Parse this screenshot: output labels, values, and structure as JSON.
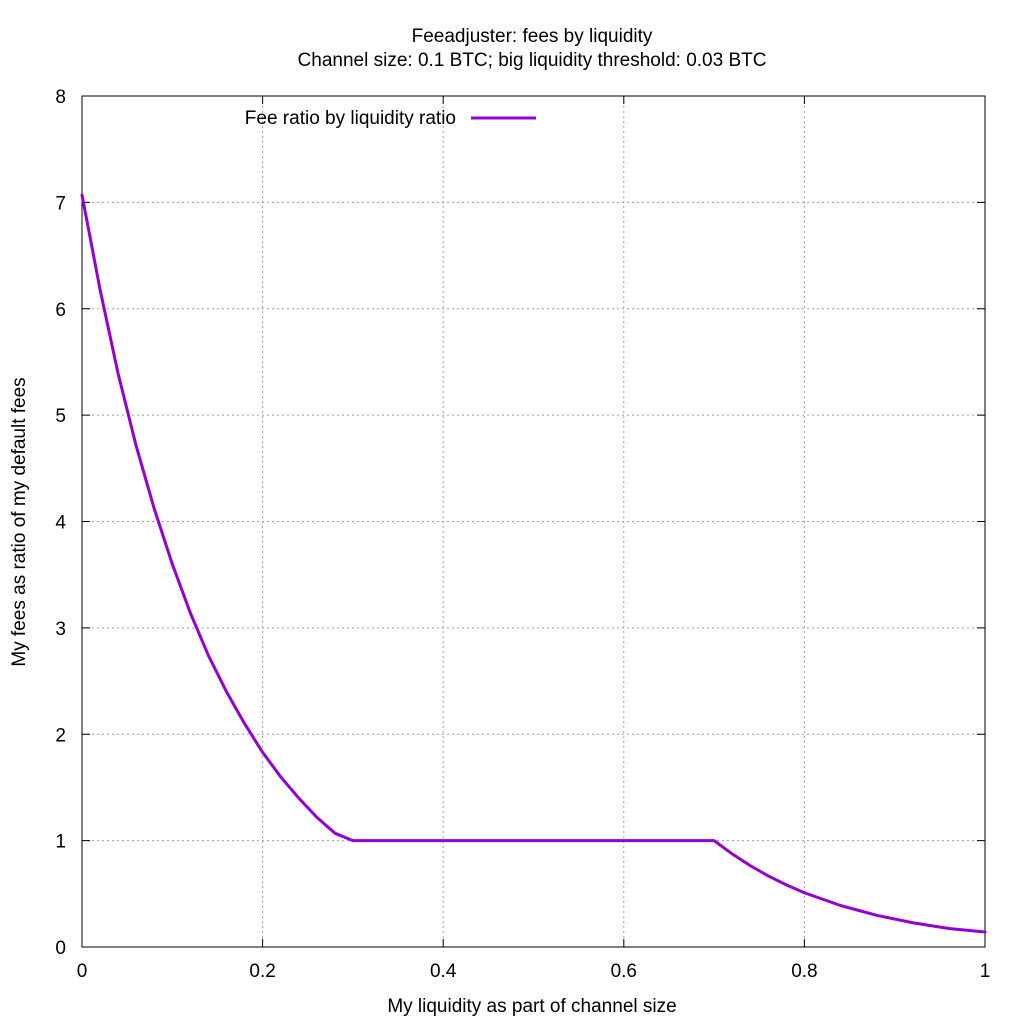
{
  "chart_data": {
    "type": "line",
    "title": "Feeadjuster: fees by liquidity",
    "subtitle": "Channel size: 0.1 BTC; big liquidity threshold: 0.03 BTC",
    "xlabel": "My liquidity as part of channel size",
    "ylabel": "My fees as ratio of my default fees",
    "xlim": [
      0,
      1
    ],
    "ylim": [
      0,
      8
    ],
    "xticks": [
      "0",
      "0.2",
      "0.4",
      "0.6",
      "0.8",
      "1"
    ],
    "yticks": [
      "0",
      "1",
      "2",
      "3",
      "4",
      "5",
      "6",
      "7",
      "8"
    ],
    "grid": true,
    "legend_position": "top-left",
    "series": [
      {
        "name": "Fee ratio by liquidity ratio",
        "color": "#9400d3",
        "x": [
          0,
          0.02,
          0.04,
          0.06,
          0.08,
          0.1,
          0.12,
          0.14,
          0.16,
          0.18,
          0.2,
          0.22,
          0.24,
          0.26,
          0.28,
          0.3,
          0.4,
          0.5,
          0.6,
          0.7,
          0.72,
          0.74,
          0.76,
          0.78,
          0.8,
          0.84,
          0.88,
          0.92,
          0.96,
          1.0
        ],
        "y": [
          7.07,
          6.18,
          5.39,
          4.71,
          4.12,
          3.6,
          3.14,
          2.74,
          2.4,
          2.1,
          1.83,
          1.6,
          1.4,
          1.22,
          1.07,
          1.0,
          1.0,
          1.0,
          1.0,
          1.0,
          0.875,
          0.765,
          0.668,
          0.584,
          0.51,
          0.39,
          0.298,
          0.228,
          0.174,
          0.141
        ]
      }
    ]
  }
}
